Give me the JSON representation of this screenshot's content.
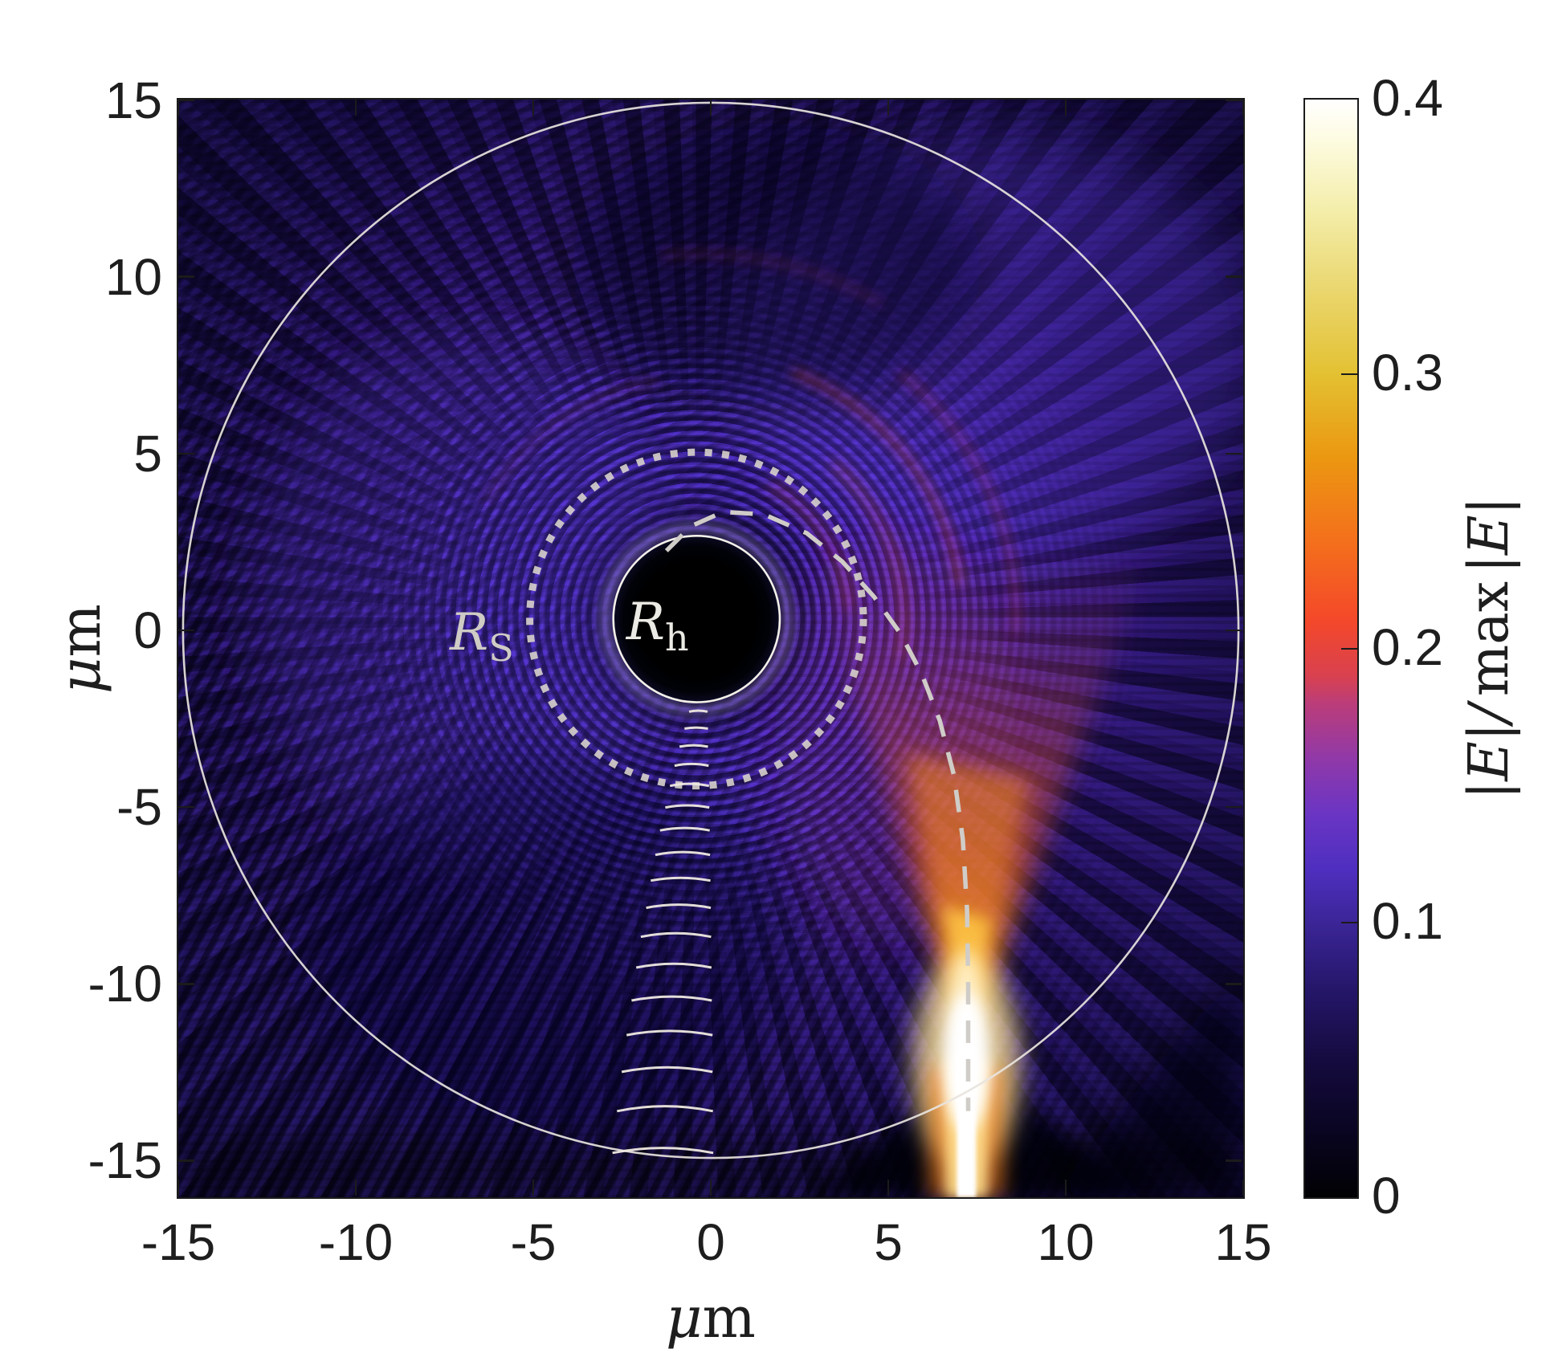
{
  "chart_data": {
    "type": "heatmap",
    "title": "",
    "xlabel": "μm",
    "xlabel_parts": {
      "mu": "μ",
      "unit": "m"
    },
    "ylabel": "μm",
    "ylabel_parts": {
      "mu": "μ",
      "unit": "m"
    },
    "xlim": [
      -15,
      15
    ],
    "ylim": [
      -16.05,
      15
    ],
    "x_ticks": [
      -15,
      -10,
      -5,
      0,
      5,
      10,
      15
    ],
    "y_ticks": [
      15,
      10,
      5,
      0,
      -5,
      -10,
      -15
    ],
    "grid": false,
    "legend": "none",
    "colorbar": {
      "label": "|E|/ max |E|",
      "label_parts": {
        "lhs": "|E|/",
        "max": "max",
        "rhs": "|E|"
      },
      "range": [
        0,
        0.4
      ],
      "ticks": [
        0,
        0.1,
        0.2,
        0.3,
        0.4
      ],
      "tick_labels": [
        "0",
        "0.1",
        "0.2",
        "0.3",
        "0.4"
      ],
      "colormap": [
        [
          0.0,
          "#010103"
        ],
        [
          0.025,
          "#0a0522"
        ],
        [
          0.05,
          "#150b3f"
        ],
        [
          0.075,
          "#251668"
        ],
        [
          0.1,
          "#3b2597"
        ],
        [
          0.12,
          "#4f2fc0"
        ],
        [
          0.14,
          "#6b35c3"
        ],
        [
          0.16,
          "#9139a8"
        ],
        [
          0.18,
          "#bb3d79"
        ],
        [
          0.19,
          "#d9414f"
        ],
        [
          0.21,
          "#f4482a"
        ],
        [
          0.24,
          "#f4711b"
        ],
        [
          0.27,
          "#eb9811"
        ],
        [
          0.3,
          "#e3c132"
        ],
        [
          0.33,
          "#ead66d"
        ],
        [
          0.36,
          "#f4eeab"
        ],
        [
          0.385,
          "#fdfbe0"
        ],
        [
          0.4,
          "#ffffff"
        ]
      ]
    },
    "annotations": {
      "horizon": {
        "label": "R",
        "sub": "h",
        "center": [
          -0.4,
          0.32
        ],
        "radius": 2.35,
        "label_pos": [
          -1.5,
          0.25
        ]
      },
      "schwarzschild": {
        "label": "R",
        "sub": "S",
        "center": [
          -0.4,
          0.32
        ],
        "radius": 4.7,
        "style": "dotted",
        "label_pos": [
          -6.45,
          -0.05
        ]
      },
      "outer_boundary": {
        "center": [
          0,
          0
        ],
        "radius": 14.9,
        "style": "solid-thin"
      },
      "ray": {
        "style": "dashed",
        "points": [
          [
            -1.25,
            2.25
          ],
          [
            -0.55,
            2.95
          ],
          [
            0.35,
            3.35
          ],
          [
            1.5,
            3.28
          ],
          [
            2.7,
            2.75
          ],
          [
            3.7,
            1.95
          ],
          [
            4.6,
            0.95
          ],
          [
            5.35,
            -0.1
          ],
          [
            5.95,
            -1.25
          ],
          [
            6.45,
            -2.55
          ],
          [
            6.85,
            -4.1
          ],
          [
            7.1,
            -5.9
          ],
          [
            7.22,
            -7.9
          ],
          [
            7.25,
            -9.9
          ],
          [
            7.25,
            -12.0
          ],
          [
            7.25,
            -13.6
          ]
        ]
      },
      "wavefronts": [
        {
          "y": -2.3,
          "x1": -0.61,
          "x2": -0.09,
          "sag": 0.03
        },
        {
          "y": -2.78,
          "x1": -0.74,
          "x2": -0.08,
          "sag": 0.03
        },
        {
          "y": -3.29,
          "x1": -0.88,
          "x2": -0.08,
          "sag": 0.04
        },
        {
          "y": -3.83,
          "x1": -1.02,
          "x2": -0.06,
          "sag": 0.05
        },
        {
          "y": -4.4,
          "x1": -1.15,
          "x2": -0.05,
          "sag": 0.06
        },
        {
          "y": -5.01,
          "x1": -1.28,
          "x2": -0.04,
          "sag": 0.06
        },
        {
          "y": -5.66,
          "x1": -1.43,
          "x2": -0.03,
          "sag": 0.07
        },
        {
          "y": -6.35,
          "x1": -1.56,
          "x2": -0.02,
          "sag": 0.08
        },
        {
          "y": -7.08,
          "x1": -1.69,
          "x2": -0.01,
          "sag": 0.08
        },
        {
          "y": -7.85,
          "x1": -1.82,
          "x2": 0.0,
          "sag": 0.09
        },
        {
          "y": -8.67,
          "x1": -1.97,
          "x2": 0.01,
          "sag": 0.1
        },
        {
          "y": -9.54,
          "x1": -2.1,
          "x2": 0.02,
          "sag": 0.11
        },
        {
          "y": -10.47,
          "x1": -2.23,
          "x2": 0.03,
          "sag": 0.11
        },
        {
          "y": -11.45,
          "x1": -2.37,
          "x2": 0.05,
          "sag": 0.12
        },
        {
          "y": -12.49,
          "x1": -2.51,
          "x2": 0.05,
          "sag": 0.13
        },
        {
          "y": -13.6,
          "x1": -2.64,
          "x2": 0.06,
          "sag": 0.14
        },
        {
          "y": -14.78,
          "x1": -2.77,
          "x2": 0.07,
          "sag": 0.14
        }
      ],
      "beam": {
        "x": 7.2,
        "waist_y": -12.2,
        "peak_normalized_amplitude": 0.4
      }
    },
    "features": [
      "normalized electric field magnitude around optical black-hole analogue",
      "bright focused beam enters from bottom at x~7.2 um, waist ~0.4 at y~-12",
      "beam fans out upward (values ~0.2-0.3) and is deflected around the horizon",
      "interference fringes over most of the domain at levels ~0.05-0.12",
      "black absorbing horizon disk R_h ~2.35 um; dotted circle R_S ~4.7 um; outer boundary circle ~14.9 um"
    ]
  }
}
